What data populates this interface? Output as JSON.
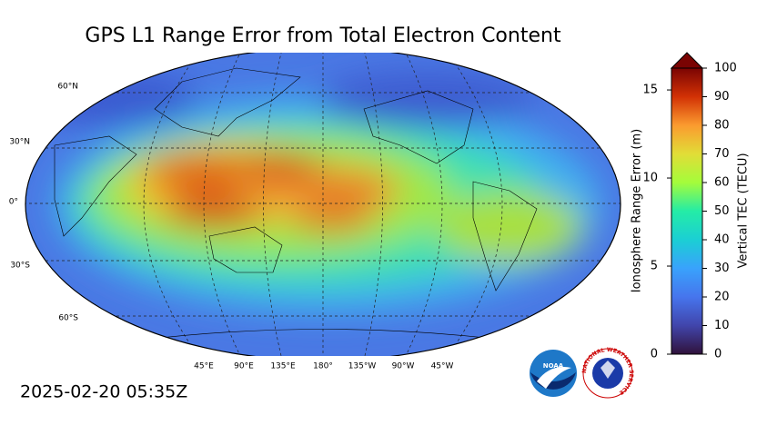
{
  "title": "GPS L1 Range Error from Total Electron Content",
  "map": {
    "lat_labels": [
      "60°N",
      "30°N",
      "0°",
      "30°S",
      "60°S"
    ],
    "lon_labels": [
      "45°E",
      "90°E",
      "135°E",
      "180°",
      "135°W",
      "90°W",
      "45°W"
    ]
  },
  "colorbar": {
    "ylabel": "Ionosphere Range Error (m)",
    "ylim": [
      0,
      16.24
    ],
    "yticks": [
      0,
      5,
      10,
      15
    ],
    "y2label": "Vertical TEC (TECU)",
    "y2lim": [
      0,
      100
    ],
    "y2ticks": [
      0,
      10,
      20,
      30,
      40,
      50,
      60,
      70,
      80,
      90,
      100
    ]
  },
  "timestamp": "2025-02-20 05:35Z",
  "logos": {
    "noaa": "NOAA",
    "nws": "NATIONAL WEATHER SERVICE"
  }
}
